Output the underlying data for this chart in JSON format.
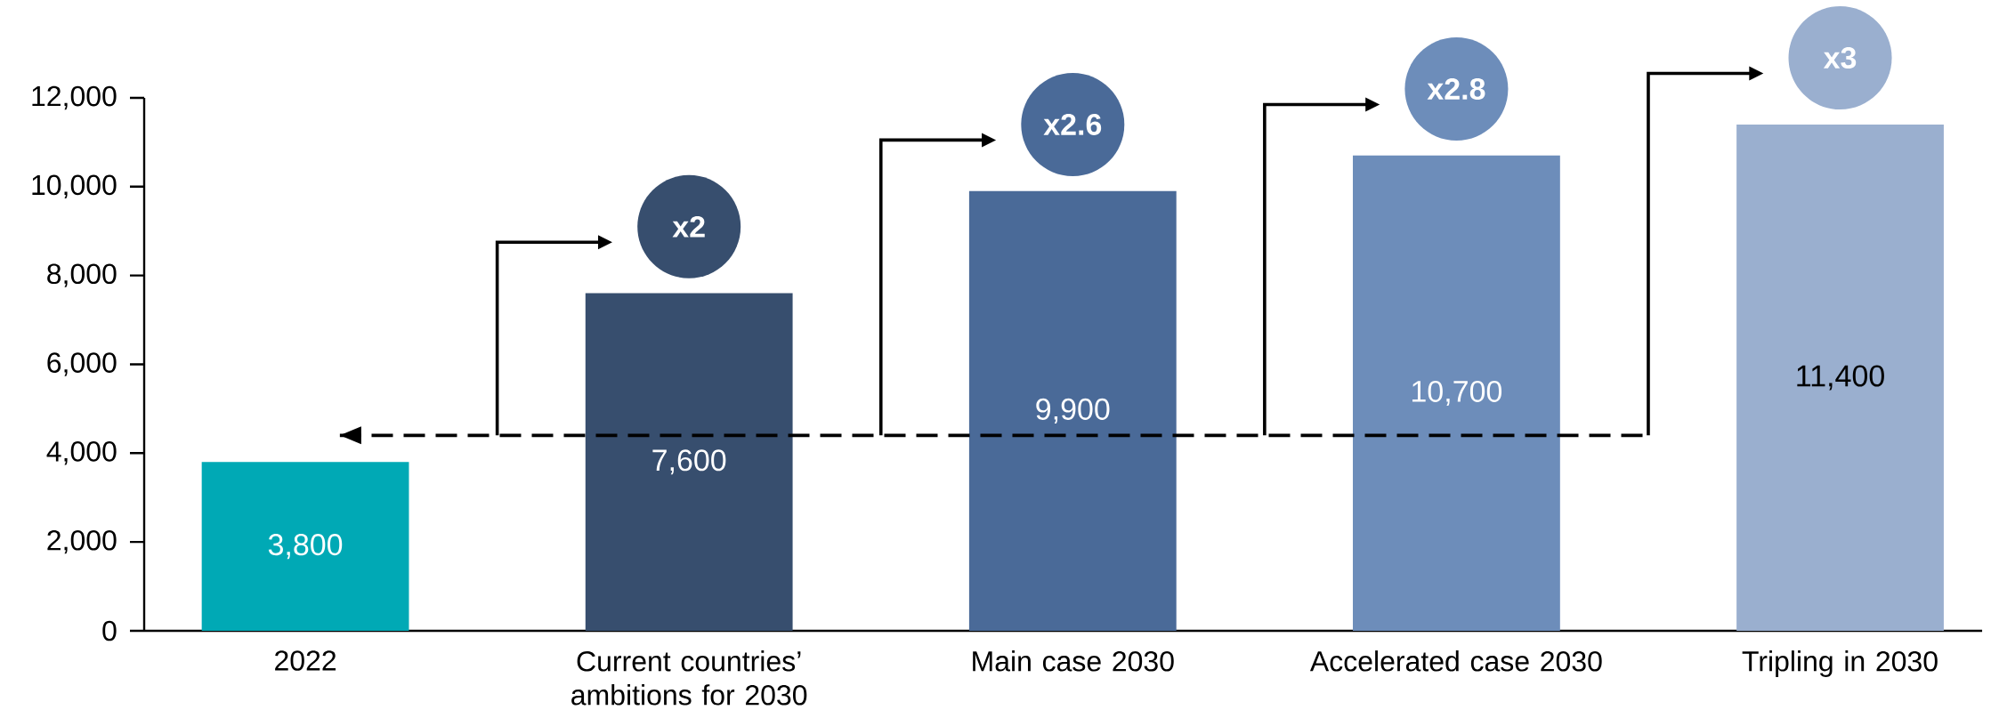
{
  "chart_data": {
    "type": "bar",
    "categories": [
      "2022",
      "Current countries’ ambitions for 2030",
      "Main case 2030",
      "Accelerated case 2030",
      "Tripling in 2030"
    ],
    "values": [
      3800,
      7600,
      9900,
      10700,
      11400
    ],
    "colors": [
      "#00a9b5",
      "#374e6e",
      "#4a6a98",
      "#6d8dba",
      "#9aafcf"
    ],
    "value_labels": [
      "3,800",
      "7,600",
      "9,900",
      "10,700",
      "11,400"
    ],
    "ylim": [
      0,
      12000
    ],
    "yticks": [
      0,
      {
        "value": 2000,
        "label": "2,000"
      },
      {
        "value": 4000,
        "label": "4,000"
      },
      {
        "value": 6000,
        "label": "6,000"
      },
      {
        "value": 8000,
        "label": "8,000"
      },
      {
        "value": 10000,
        "label": "10,000"
      },
      {
        "value": 12000,
        "label": "12,000"
      }
    ],
    "ref_lines": [
      {
        "axis": "y",
        "value": 4400,
        "color": "#000000",
        "line_style": "dashed"
      }
    ],
    "annotations": [
      "x2",
      "x2.6",
      "x2.8",
      "x3"
    ]
  }
}
